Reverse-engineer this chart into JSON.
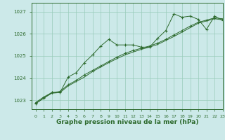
{
  "background_color": "#cce9e9",
  "grid_color": "#99ccbb",
  "line_color": "#2d6a2d",
  "marker_color": "#2d6a2d",
  "xlim": [
    -0.5,
    23
  ],
  "ylim": [
    1022.6,
    1027.4
  ],
  "yticks": [
    1023,
    1024,
    1025,
    1026,
    1027
  ],
  "xticks": [
    0,
    1,
    2,
    3,
    4,
    5,
    6,
    7,
    8,
    9,
    10,
    11,
    12,
    13,
    14,
    15,
    16,
    17,
    18,
    19,
    20,
    21,
    22,
    23
  ],
  "xlabel": "Graphe pression niveau de la mer (hPa)",
  "xlabel_fontsize": 6.5,
  "line1": [
    1022.9,
    1023.15,
    1023.35,
    1023.35,
    1024.05,
    1024.25,
    1024.7,
    1025.05,
    1025.45,
    1025.75,
    1025.5,
    1025.5,
    1025.5,
    1025.4,
    1025.4,
    1025.8,
    1026.15,
    1026.9,
    1026.75,
    1026.8,
    1026.65,
    1026.2,
    1026.8,
    1026.6
  ],
  "line2": [
    1022.85,
    1023.1,
    1023.35,
    1023.4,
    1023.7,
    1023.9,
    1024.15,
    1024.35,
    1024.55,
    1024.75,
    1024.95,
    1025.12,
    1025.25,
    1025.35,
    1025.45,
    1025.58,
    1025.75,
    1025.95,
    1026.15,
    1026.35,
    1026.52,
    1026.62,
    1026.72,
    1026.68
  ],
  "line3": [
    1022.85,
    1023.1,
    1023.32,
    1023.35,
    1023.65,
    1023.85,
    1024.05,
    1024.3,
    1024.5,
    1024.7,
    1024.88,
    1025.05,
    1025.18,
    1025.3,
    1025.4,
    1025.52,
    1025.7,
    1025.88,
    1026.08,
    1026.28,
    1026.48,
    1026.58,
    1026.68,
    1026.63
  ]
}
